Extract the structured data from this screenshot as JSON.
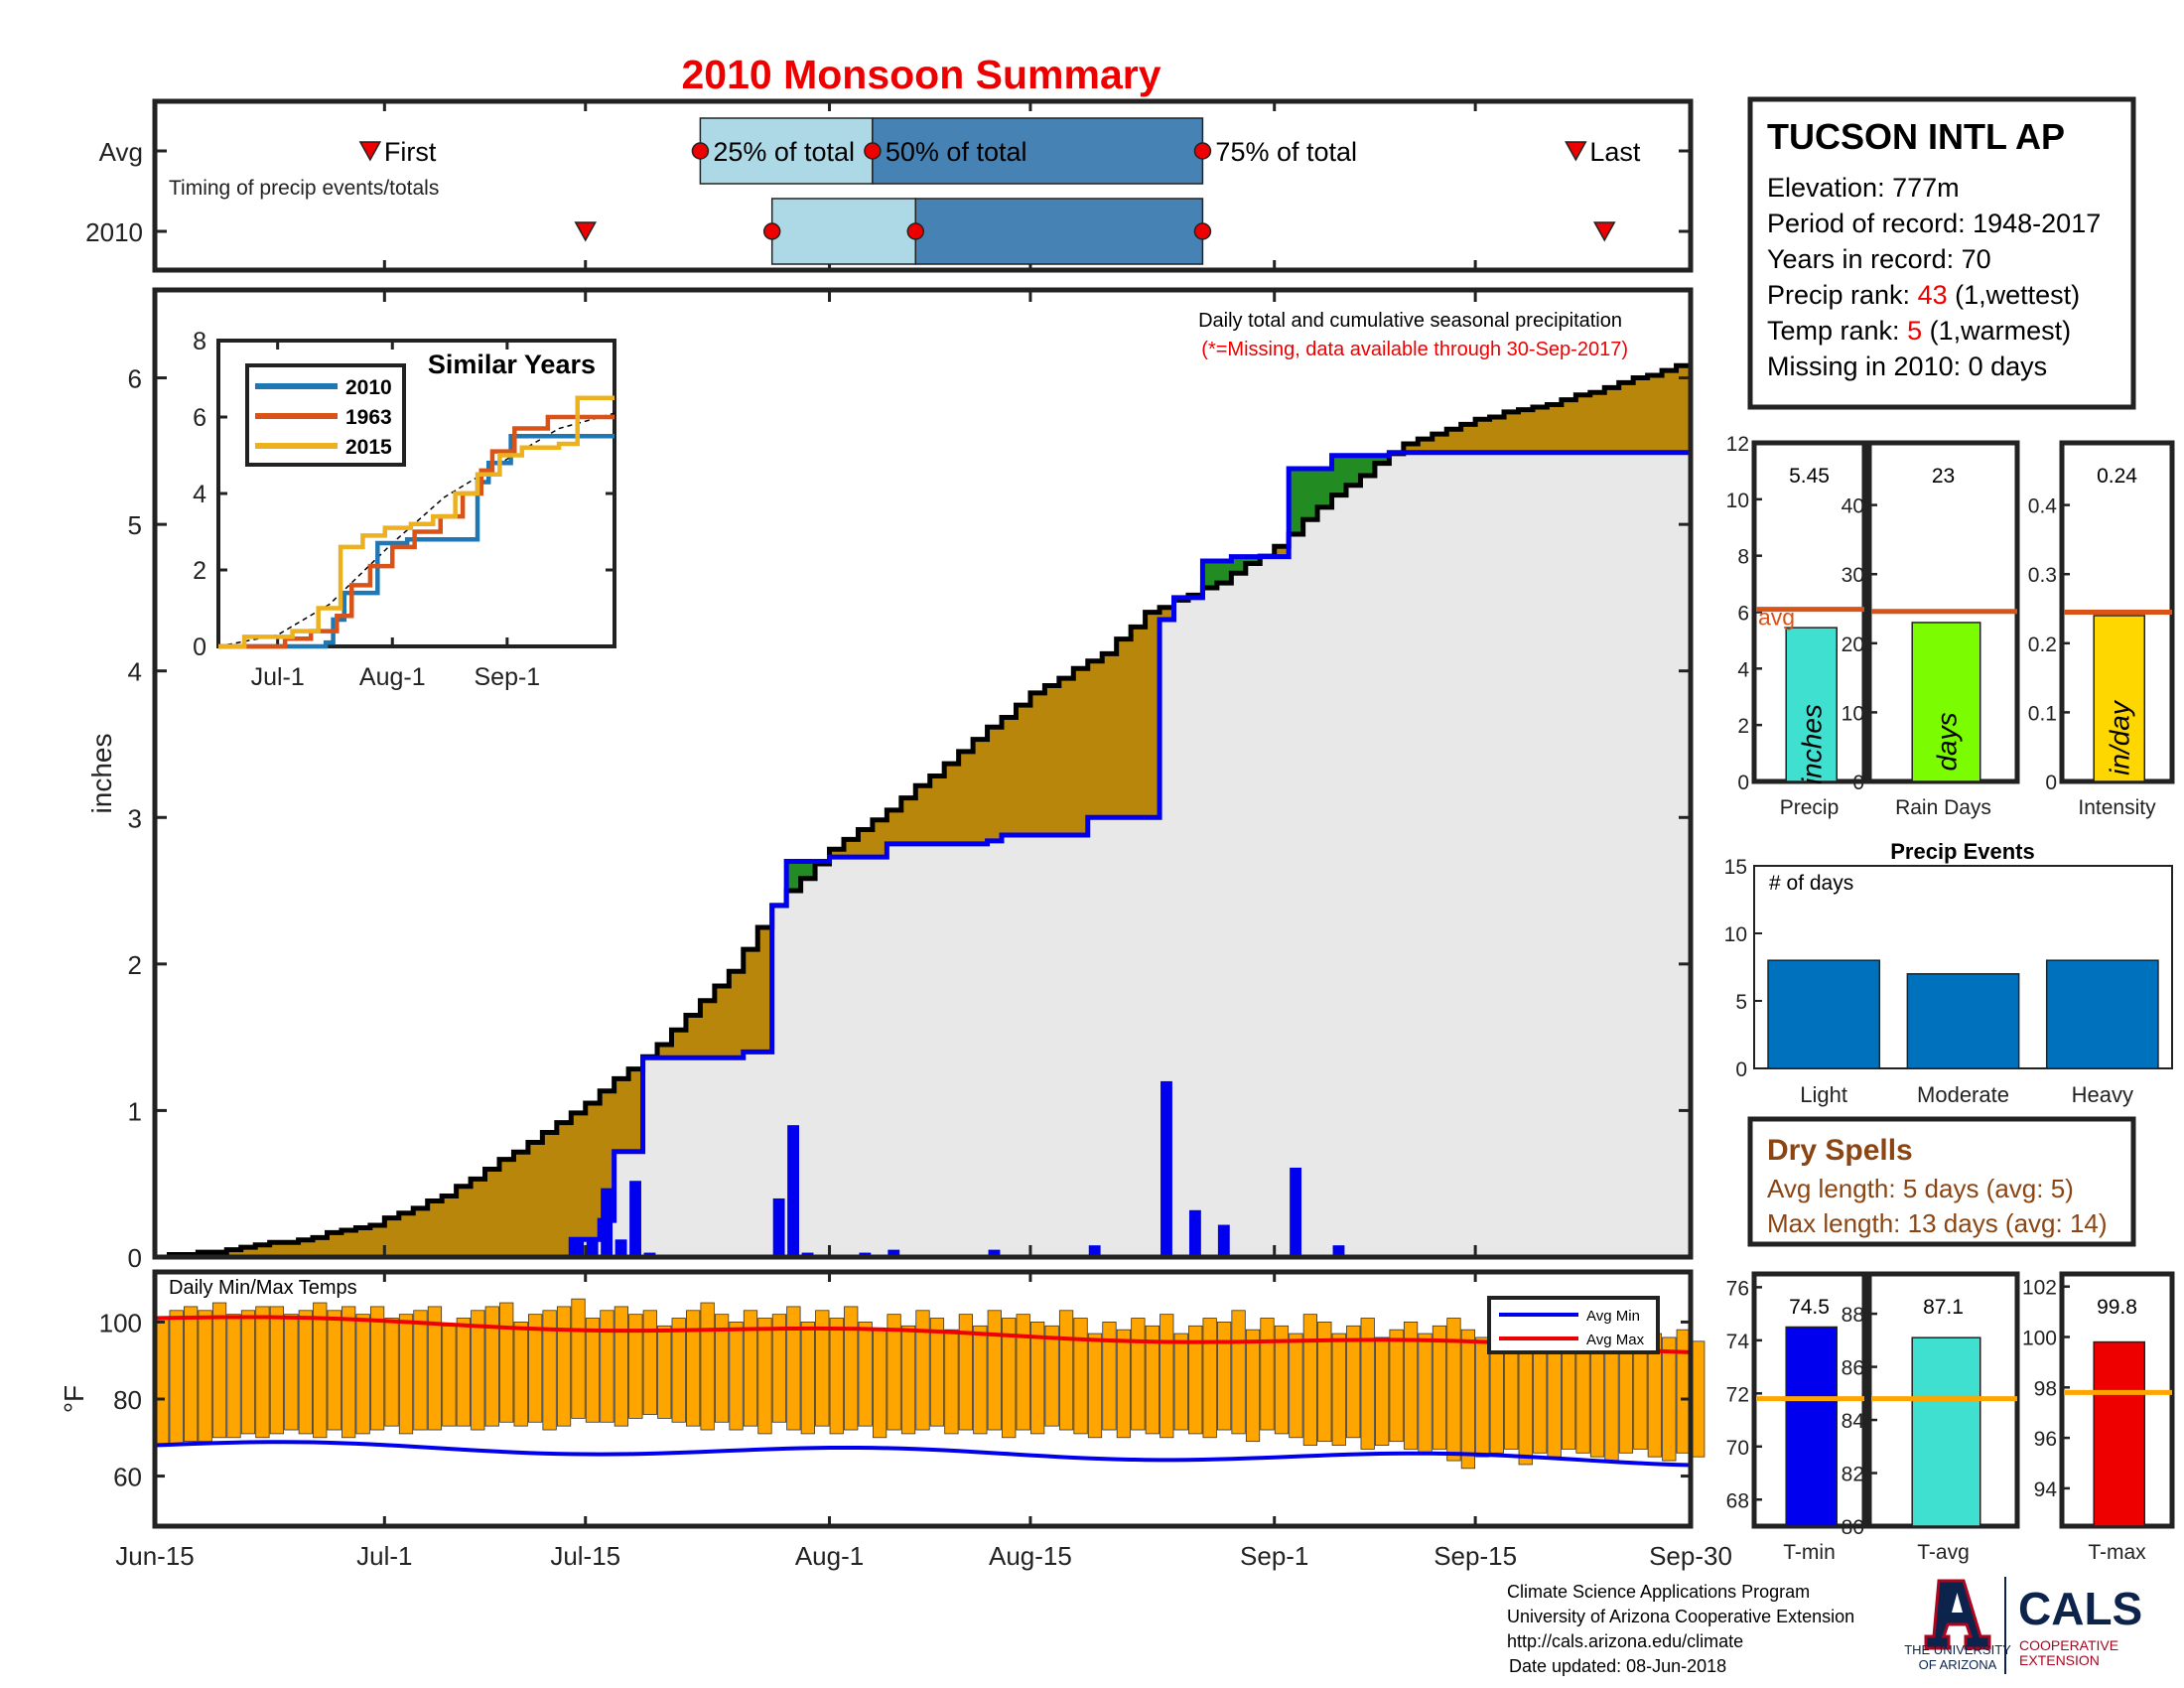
{
  "title": "2010 Monsoon Summary",
  "timing": {
    "row_labels": [
      "Avg",
      "2010"
    ],
    "subtitle": "Timing of precip events/totals",
    "avg": {
      "first": "Jun-30",
      "p25": "Jul-23",
      "p50": "Aug-4",
      "p75": "Aug-27",
      "last": "Sep-22"
    },
    "y2010": {
      "first": "Jul-15",
      "p25": "Jul-28",
      "p50": "Aug-7",
      "p75": "Aug-27",
      "last": "Sep-24"
    },
    "labels": {
      "first": "First",
      "p25": "25% of total",
      "p50": "50% of total",
      "p75": "75% of total",
      "last": "Last"
    },
    "colors": {
      "light": "#add8e6",
      "dark": "#4682b4",
      "marker": "#ee0000"
    }
  },
  "station": {
    "name": "TUCSON INTL AP",
    "elevation_label": "Elevation: 777m",
    "period_label": "Period of record: 1948-2017",
    "years_label": "Years in record: 70",
    "precip_rank_prefix": "Precip rank: ",
    "precip_rank": "43",
    "precip_rank_suffix": " (1,wettest)",
    "temp_rank_prefix": "Temp rank: ",
    "temp_rank": "5",
    "temp_rank_suffix": " (1,warmest)",
    "missing_label": "Missing in 2010: 0 days"
  },
  "chart_data": [
    {
      "id": "daily-cumulative-precip",
      "type": "area",
      "title": "Daily total and cumulative seasonal precipitation",
      "subtitle": "(*=Missing, data available through 30-Sep-2017)",
      "ylabel": "inches",
      "ylim": [
        0,
        6.6
      ],
      "yticks": [
        0,
        1,
        2,
        3,
        4,
        5,
        6
      ],
      "xlim": [
        "Jun-15",
        "Sep-30"
      ],
      "xticks": [
        "Jun-15",
        "Jul-1",
        "Jul-15",
        "Aug-1",
        "Aug-15",
        "Sep-1",
        "Sep-15",
        "Sep-30"
      ],
      "avg_cumulative": {
        "x": [
          "Jun-15",
          "Jun-20",
          "Jun-25",
          "Jun-30",
          "Jul-5",
          "Jul-10",
          "Jul-15",
          "Jul-20",
          "Jul-25",
          "Jul-28",
          "Aug-1",
          "Aug-5",
          "Aug-10",
          "Aug-15",
          "Aug-20",
          "Aug-23",
          "Aug-28",
          "Sep-1",
          "Sep-5",
          "Sep-10",
          "Sep-15",
          "Sep-20",
          "Sep-25",
          "Sep-30"
        ],
        "y": [
          0,
          0.05,
          0.12,
          0.22,
          0.42,
          0.72,
          1.05,
          1.45,
          1.95,
          2.4,
          2.78,
          3.05,
          3.45,
          3.85,
          4.12,
          4.4,
          4.6,
          4.85,
          5.2,
          5.55,
          5.72,
          5.82,
          5.96,
          6.12
        ]
      },
      "cum2010": {
        "x": [
          "Jun-15",
          "Jul-11",
          "Jul-14",
          "Jul-16",
          "Jul-17",
          "Jul-19",
          "Jul-26",
          "Jul-28",
          "Jul-29",
          "Aug-1",
          "Aug-5",
          "Aug-12",
          "Aug-13",
          "Aug-19",
          "Aug-24",
          "Aug-25",
          "Aug-27",
          "Aug-29",
          "Sep-2",
          "Sep-5",
          "Sep-9",
          "Sep-30"
        ],
        "y": [
          0,
          0,
          0.12,
          0.25,
          0.72,
          1.36,
          1.4,
          2.4,
          2.7,
          2.73,
          2.82,
          2.84,
          2.88,
          3.0,
          4.35,
          4.5,
          4.75,
          4.78,
          5.38,
          5.47,
          5.49,
          5.49
        ]
      },
      "daily2010": {
        "x": [
          "Jul-14",
          "Jul-15",
          "Jul-16",
          "Jul-17",
          "Jul-18",
          "Jul-19",
          "Jul-28",
          "Jul-29",
          "Jul-30",
          "Aug-3",
          "Aug-5",
          "Aug-12",
          "Aug-19",
          "Aug-24",
          "Aug-26",
          "Aug-28",
          "Sep-2",
          "Sep-5"
        ],
        "y": [
          0.12,
          0.13,
          0.47,
          0.12,
          0.52,
          0.03,
          0.4,
          0.9,
          0.03,
          0.03,
          0.05,
          0.05,
          0.08,
          1.2,
          0.32,
          0.22,
          0.61,
          0.08
        ]
      },
      "colors": {
        "deficit": "#b8860b",
        "surplus": "#228b22",
        "fill": "#e8e8e8",
        "line2010": "#0000ee",
        "bars": "#0000ee",
        "avgline": "#000000"
      }
    },
    {
      "id": "similar-years",
      "type": "line",
      "title": "Similar Years",
      "ylim": [
        0,
        8
      ],
      "yticks": [
        0,
        2,
        4,
        6,
        8
      ],
      "xticks": [
        "Jul-1",
        "Aug-1",
        "Sep-1"
      ],
      "series": [
        {
          "name": "2010",
          "color": "#1f77b4",
          "x": [
            "Jun-15",
            "Jul-14",
            "Jul-16",
            "Jul-19",
            "Jul-28",
            "Aug-5",
            "Aug-24",
            "Aug-27",
            "Sep-2",
            "Sep-30"
          ],
          "y": [
            0,
            0.1,
            0.7,
            1.4,
            2.7,
            2.8,
            4.3,
            4.8,
            5.5,
            5.5
          ]
        },
        {
          "name": "1963",
          "color": "#d95319",
          "x": [
            "Jun-15",
            "Jul-3",
            "Jul-10",
            "Jul-17",
            "Jul-21",
            "Jul-26",
            "Aug-1",
            "Aug-7",
            "Aug-14",
            "Aug-20",
            "Aug-25",
            "Aug-28",
            "Sep-3",
            "Sep-12",
            "Sep-30"
          ],
          "y": [
            0,
            0.2,
            0.4,
            0.8,
            1.6,
            2.1,
            2.6,
            3.0,
            3.4,
            4.0,
            4.6,
            5.1,
            5.7,
            6.0,
            6.0
          ]
        },
        {
          "name": "2015",
          "color": "#edb120",
          "x": [
            "Jun-15",
            "Jun-22",
            "Jul-5",
            "Jul-12",
            "Jul-18",
            "Jul-24",
            "Jul-30",
            "Aug-6",
            "Aug-12",
            "Aug-18",
            "Aug-24",
            "Aug-30",
            "Sep-5",
            "Sep-15",
            "Sep-20",
            "Sep-30"
          ],
          "y": [
            0,
            0.25,
            0.4,
            1.0,
            2.6,
            2.9,
            3.1,
            3.2,
            3.4,
            4.0,
            4.5,
            5.0,
            5.2,
            5.3,
            6.5,
            6.5
          ]
        }
      ],
      "avg_dashed": {
        "x": [
          "Jun-15",
          "Jul-1",
          "Jul-15",
          "Aug-1",
          "Aug-15",
          "Sep-1",
          "Sep-15",
          "Sep-30"
        ],
        "y": [
          0,
          0.3,
          1.1,
          2.7,
          3.9,
          4.9,
          5.7,
          6.1
        ]
      }
    },
    {
      "id": "precip-bar",
      "type": "bar",
      "categories": [
        "Precip"
      ],
      "values": [
        5.45
      ],
      "value_label": "5.45",
      "inner_label": "inches",
      "avg_label": "avg",
      "avg": 6.1,
      "ylim": [
        0,
        12
      ],
      "yticks": [
        0,
        2,
        4,
        6,
        8,
        10,
        12
      ],
      "color": "#40e0d0"
    },
    {
      "id": "rain-days-bar",
      "type": "bar",
      "categories": [
        "Rain Days"
      ],
      "values": [
        23
      ],
      "value_label": "23",
      "inner_label": "days",
      "avg": 24.6,
      "ylim": [
        0,
        49
      ],
      "yticks": [
        0,
        10,
        20,
        30,
        40
      ],
      "color": "#7cfc00"
    },
    {
      "id": "intensity-bar",
      "type": "bar",
      "categories": [
        "Intensity"
      ],
      "values": [
        0.24
      ],
      "value_label": "0.24",
      "inner_label": "in/day",
      "avg": 0.245,
      "ylim": [
        0,
        0.49
      ],
      "yticks": [
        0,
        0.1,
        0.2,
        0.3,
        0.4
      ],
      "color": "#ffd700"
    },
    {
      "id": "precip-events",
      "type": "bar",
      "title": "Precip Events",
      "ylabel": "# of days",
      "categories": [
        "Light",
        "Moderate",
        "Heavy"
      ],
      "values": [
        8,
        7,
        8
      ],
      "ylim": [
        0,
        15
      ],
      "yticks": [
        0,
        5,
        10,
        15
      ],
      "color": "#0072bd"
    },
    {
      "id": "daily-temps",
      "type": "bar",
      "title": "Daily Min/Max Temps",
      "ylabel": "°F",
      "ylim": [
        47,
        113
      ],
      "yticks": [
        60,
        80,
        100
      ],
      "xlim": [
        "Jun-15",
        "Sep-30"
      ],
      "ranges": [
        [
          68,
          101
        ],
        [
          68,
          103
        ],
        [
          69,
          104
        ],
        [
          69,
          103
        ],
        [
          70,
          105
        ],
        [
          70,
          102
        ],
        [
          71,
          103
        ],
        [
          70,
          104
        ],
        [
          71,
          104
        ],
        [
          72,
          102
        ],
        [
          71,
          103
        ],
        [
          70,
          105
        ],
        [
          72,
          103
        ],
        [
          70,
          104
        ],
        [
          71,
          102
        ],
        [
          72,
          104
        ],
        [
          73,
          101
        ],
        [
          71,
          102
        ],
        [
          72,
          103
        ],
        [
          72,
          104
        ],
        [
          73,
          99
        ],
        [
          73,
          101
        ],
        [
          72,
          103
        ],
        [
          73,
          104
        ],
        [
          74,
          105
        ],
        [
          73,
          100
        ],
        [
          74,
          102
        ],
        [
          72,
          103
        ],
        [
          73,
          104
        ],
        [
          75,
          106
        ],
        [
          74,
          101
        ],
        [
          74,
          103
        ],
        [
          73,
          104
        ],
        [
          75,
          102
        ],
        [
          76,
          103
        ],
        [
          75,
          99
        ],
        [
          74,
          101
        ],
        [
          73,
          103
        ],
        [
          72,
          105
        ],
        [
          74,
          102
        ],
        [
          72,
          100
        ],
        [
          73,
          103
        ],
        [
          71,
          101
        ],
        [
          74,
          102
        ],
        [
          72,
          104
        ],
        [
          71,
          100
        ],
        [
          73,
          103
        ],
        [
          71,
          101
        ],
        [
          72,
          104
        ],
        [
          73,
          100
        ],
        [
          70,
          98
        ],
        [
          72,
          102
        ],
        [
          71,
          99
        ],
        [
          72,
          103
        ],
        [
          73,
          101
        ],
        [
          71,
          98
        ],
        [
          72,
          102
        ],
        [
          71,
          99
        ],
        [
          72,
          103
        ],
        [
          70,
          101
        ],
        [
          72,
          102
        ],
        [
          71,
          100
        ],
        [
          73,
          99
        ],
        [
          72,
          103
        ],
        [
          71,
          101
        ],
        [
          70,
          97
        ],
        [
          72,
          100
        ],
        [
          70,
          98
        ],
        [
          72,
          101
        ],
        [
          71,
          99
        ],
        [
          70,
          102
        ],
        [
          72,
          97
        ],
        [
          71,
          99
        ],
        [
          70,
          101
        ],
        [
          72,
          100
        ],
        [
          71,
          103
        ],
        [
          69,
          98
        ],
        [
          72,
          101
        ],
        [
          71,
          99
        ],
        [
          70,
          97
        ],
        [
          68,
          102
        ],
        [
          69,
          100
        ],
        [
          68,
          97
        ],
        [
          70,
          99
        ],
        [
          67,
          101
        ],
        [
          68,
          96
        ],
        [
          69,
          98
        ],
        [
          67,
          100
        ],
        [
          66,
          97
        ],
        [
          67,
          99
        ],
        [
          64,
          101
        ],
        [
          62,
          98
        ],
        [
          65,
          96
        ],
        [
          66,
          99
        ],
        [
          67,
          97
        ],
        [
          63,
          95
        ],
        [
          66,
          98
        ],
        [
          65,
          96
        ],
        [
          67,
          99
        ],
        [
          66,
          97
        ],
        [
          65,
          95
        ],
        [
          64,
          98
        ],
        [
          66,
          96
        ],
        [
          67,
          99
        ],
        [
          65,
          97
        ],
        [
          64,
          96
        ],
        [
          66,
          98
        ],
        [
          65,
          95
        ]
      ],
      "avg_min_start": 68,
      "avg_min_end": 64,
      "avg_max_start": 101,
      "avg_max_end": 93,
      "legend": {
        "min": "Avg Min",
        "max": "Avg Max"
      },
      "colors": {
        "bars": "#ffa500",
        "min": "#0000ee",
        "max": "#ee0000"
      }
    },
    {
      "id": "tmin-bar",
      "type": "bar",
      "categories": [
        "T-min"
      ],
      "values": [
        74.5
      ],
      "value_label": "74.5",
      "avg": 71.8,
      "ylim": [
        67,
        76.5
      ],
      "yticks": [
        68,
        70,
        72,
        74,
        76
      ],
      "color": "#0000ee"
    },
    {
      "id": "tavg-bar",
      "type": "bar",
      "categories": [
        "T-avg"
      ],
      "values": [
        87.1
      ],
      "value_label": "87.1",
      "avg": 84.8,
      "ylim": [
        80,
        89.5
      ],
      "yticks": [
        80,
        82,
        84,
        86,
        88
      ],
      "color": "#40e0d0"
    },
    {
      "id": "tmax-bar",
      "type": "bar",
      "categories": [
        "T-max"
      ],
      "values": [
        99.8
      ],
      "value_label": "99.8",
      "avg": 97.8,
      "ylim": [
        92.5,
        102.5
      ],
      "yticks": [
        94,
        96,
        98,
        100,
        102
      ],
      "color": "#ee0000"
    }
  ],
  "dry_spells": {
    "title": "Dry Spells",
    "avg_label": "Avg length: 5 days (avg: 5)",
    "max_label": "Max length: 13 days (avg: 14)"
  },
  "footer": {
    "line1": "Climate Science Applications Program",
    "line2": "University of Arizona Cooperative Extension",
    "line3": "http://cals.arizona.edu/climate",
    "line4": "Date updated: 08-Jun-2018"
  },
  "logos": {
    "ua_line1": "THE UNIVERSITY",
    "ua_line2": "OF ARIZONA",
    "cals": "CALS",
    "coop1": "COOPERATIVE",
    "coop2": "EXTENSION"
  }
}
